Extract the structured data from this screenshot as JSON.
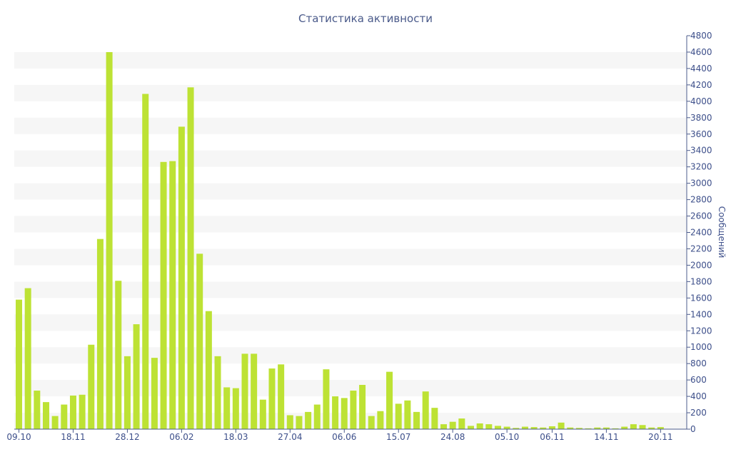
{
  "chart_data": {
    "type": "bar",
    "title": "Статистика активности",
    "xlabel": "",
    "ylabel": "Сообщений",
    "ylim": [
      0,
      4800
    ],
    "y_ticks": [
      0,
      200,
      400,
      600,
      800,
      1000,
      1200,
      1400,
      1600,
      1800,
      2000,
      2200,
      2400,
      2600,
      2800,
      3000,
      3200,
      3400,
      3600,
      3800,
      4000,
      4200,
      4400,
      4600,
      4800
    ],
    "y_axis_side": "right",
    "x_tick_labels": [
      {
        "label": "09.10",
        "index": 0
      },
      {
        "label": "18.11",
        "index": 6
      },
      {
        "label": "28.12",
        "index": 12
      },
      {
        "label": "06.02",
        "index": 18
      },
      {
        "label": "18.03",
        "index": 24
      },
      {
        "label": "27.04",
        "index": 30
      },
      {
        "label": "06.06",
        "index": 36
      },
      {
        "label": "15.07",
        "index": 42
      },
      {
        "label": "24.08",
        "index": 48
      },
      {
        "label": "05.10",
        "index": 54
      },
      {
        "label": "06.11",
        "index": 59
      },
      {
        "label": "14.11",
        "index": 65
      },
      {
        "label": "20.11",
        "index": 71
      }
    ],
    "grid": "alternating horizontal bands",
    "bar_color": "#bde234",
    "band_color": "#f6f6f6",
    "text_color": "#3d4f8a",
    "values": [
      1580,
      1720,
      470,
      330,
      160,
      300,
      410,
      420,
      1030,
      2320,
      4600,
      1810,
      890,
      1280,
      4090,
      870,
      3260,
      3270,
      3690,
      4170,
      2140,
      1440,
      890,
      510,
      500,
      920,
      920,
      360,
      740,
      790,
      170,
      160,
      210,
      300,
      730,
      400,
      380,
      470,
      540,
      160,
      220,
      700,
      310,
      350,
      210,
      460,
      260,
      60,
      90,
      130,
      40,
      70,
      60,
      40,
      30,
      15,
      30,
      25,
      20,
      35,
      80,
      20,
      15,
      10,
      20,
      20,
      10,
      30,
      60,
      50,
      20,
      25
    ]
  }
}
